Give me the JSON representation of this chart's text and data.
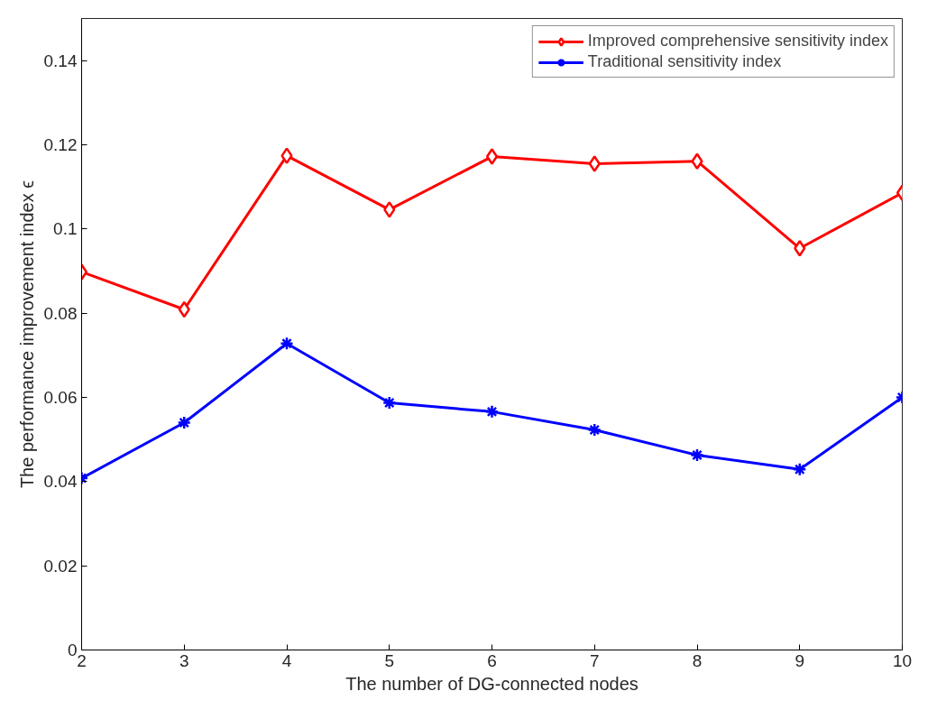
{
  "chart_data": {
    "type": "line",
    "xlabel": "The number of DG-connected nodes",
    "ylabel": "The performance improvement index ϵ",
    "x": [
      2,
      3,
      4,
      5,
      6,
      7,
      8,
      9,
      10
    ],
    "series": [
      {
        "name": "Improved comprehensive sensitivity index",
        "color": "#ff0000",
        "marker": "diamond",
        "values": [
          0.0898,
          0.0809,
          0.1174,
          0.1046,
          0.1172,
          0.1155,
          0.1161,
          0.0954,
          0.1086
        ]
      },
      {
        "name": "Traditional sensitivity index",
        "color": "#0000ff",
        "marker": "cross",
        "values": [
          0.0408,
          0.054,
          0.0728,
          0.0587,
          0.0566,
          0.0523,
          0.0463,
          0.0429,
          0.06
        ]
      }
    ],
    "xlim": [
      2,
      10
    ],
    "xticks": [
      2,
      3,
      4,
      5,
      6,
      7,
      8,
      9,
      10
    ],
    "ylim": [
      0,
      0.15
    ],
    "yticks": [
      0,
      0.02,
      0.04,
      0.06,
      0.08,
      {
        "value": 0.1,
        "label": "0.1"
      },
      0.12,
      0.14
    ],
    "grid": false,
    "legend": "top right",
    "line_style": "solid"
  }
}
